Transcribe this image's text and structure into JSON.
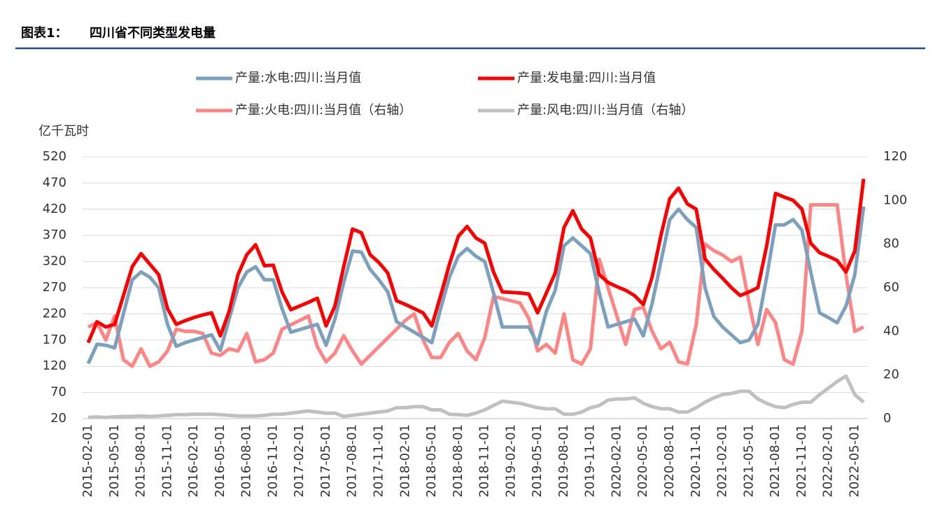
{
  "chart_data": {
    "type": "line",
    "figure_label": "图表1：",
    "title": "四川省不同类型发电量",
    "ylabel": "亿千瓦时",
    "categories": [
      "2015-02-01",
      null,
      null,
      "2015-05-01",
      null,
      null,
      "2015-08-01",
      null,
      null,
      "2015-11-01",
      null,
      null,
      "2016-02-01",
      null,
      null,
      "2016-05-01",
      null,
      null,
      "2016-08-01",
      null,
      null,
      "2016-11-01",
      null,
      null,
      "2017-02-01",
      null,
      null,
      "2017-05-01",
      null,
      null,
      "2017-08-01",
      null,
      null,
      "2017-11-01",
      null,
      null,
      "2018-02-01",
      null,
      null,
      "2018-05-01",
      null,
      null,
      "2018-08-01",
      null,
      null,
      "2018-11-01",
      null,
      null,
      "2019-02-01",
      null,
      null,
      "2019-05-01",
      null,
      null,
      "2019-08-01",
      null,
      null,
      "2019-11-01",
      null,
      null,
      "2020-02-01",
      null,
      null,
      "2020-05-01",
      null,
      null,
      "2020-08-01",
      null,
      null,
      "2020-11-01",
      null,
      null,
      "2021-02-01",
      null,
      null,
      "2021-05-01",
      null,
      null,
      "2021-08-01",
      null,
      null,
      "2021-11-01",
      null,
      null,
      "2022-02-01",
      null,
      null,
      "2022-05-01",
      null
    ],
    "series": [
      {
        "name": "产量:水电:四川:当月值",
        "color": "#7ba1bf",
        "values": [
          125,
          162,
          160,
          155,
          220,
          285,
          300,
          290,
          270,
          200,
          158,
          165,
          170,
          175,
          180,
          150,
          210,
          270,
          300,
          310,
          285,
          285,
          230,
          185,
          190,
          195,
          200,
          160,
          210,
          280,
          340,
          338,
          305,
          285,
          262,
          205,
          195,
          185,
          175,
          165,
          230,
          290,
          330,
          345,
          330,
          320,
          260,
          195,
          195,
          195,
          195,
          162,
          225,
          265,
          350,
          365,
          350,
          335,
          260,
          195,
          200,
          205,
          210,
          178,
          240,
          320,
          400,
          420,
          400,
          385,
          270,
          215,
          195,
          180,
          165,
          170,
          200,
          290,
          390,
          390,
          400,
          380,
          300,
          222,
          213,
          203,
          235,
          295,
          425
        ]
      },
      {
        "name": "产量:发电量:四川:当月值",
        "color": "#ff0000",
        "values": [
          165,
          205,
          195,
          200,
          255,
          310,
          335,
          315,
          295,
          230,
          200,
          207,
          213,
          218,
          222,
          178,
          225,
          295,
          333,
          352,
          312,
          313,
          262,
          228,
          235,
          242,
          250,
          197,
          235,
          310,
          382,
          375,
          333,
          318,
          298,
          245,
          238,
          230,
          222,
          197,
          255,
          315,
          368,
          387,
          365,
          355,
          300,
          262,
          261,
          260,
          258,
          222,
          260,
          298,
          385,
          417,
          382,
          365,
          295,
          280,
          272,
          265,
          255,
          238,
          290,
          370,
          440,
          460,
          430,
          420,
          325,
          305,
          288,
          270,
          255,
          262,
          270,
          350,
          450,
          443,
          437,
          420,
          355,
          337,
          330,
          322,
          300,
          340,
          478
        ]
      },
      {
        "name": "产量:火电:四川:当月值（右轴）",
        "color": "#ff8585",
        "axis": "y2",
        "values": [
          42,
          44,
          36,
          47,
          27,
          24,
          32,
          24,
          26,
          31,
          41,
          40,
          40,
          39,
          30,
          29,
          32,
          31,
          39,
          26,
          27,
          30,
          41,
          43,
          45,
          47,
          33,
          26,
          30,
          38,
          31,
          25,
          29,
          33,
          37,
          41,
          45,
          48,
          36,
          28,
          28,
          35,
          39,
          31,
          27,
          37,
          56,
          55,
          54,
          53,
          46,
          31,
          34,
          30,
          48,
          27,
          25,
          32,
          73,
          60,
          47,
          34,
          50,
          51,
          40,
          32,
          35,
          26,
          25,
          43,
          80,
          77,
          75,
          72,
          74,
          53,
          34,
          50,
          44,
          27,
          25,
          40,
          98,
          98,
          98,
          98,
          66,
          40,
          42
        ]
      },
      {
        "name": "产量:风电:四川:当月值（右轴）",
        "color": "#c0c0c0",
        "axis": "y2",
        "values": [
          0.5,
          0.8,
          0.5,
          0.8,
          1,
          1,
          1.2,
          1,
          1.2,
          1.5,
          1.8,
          1.8,
          2,
          2,
          2,
          1.8,
          1.5,
          1.2,
          1.2,
          1.2,
          1.5,
          2,
          2,
          2.5,
          3,
          3.5,
          3,
          2.5,
          2.5,
          1,
          1.5,
          2,
          2.5,
          3,
          3.5,
          5,
          5,
          5.5,
          5.5,
          4,
          4,
          2,
          1.8,
          1.5,
          2.5,
          4,
          6,
          8,
          7.5,
          7,
          6,
          5,
          4.5,
          4.5,
          2,
          2,
          3,
          5,
          6,
          8.5,
          9,
          9,
          9.5,
          7,
          5.5,
          4.5,
          4.5,
          3,
          3,
          5,
          7.5,
          9.5,
          11,
          11.5,
          12.5,
          12.5,
          9,
          7,
          5.5,
          5,
          6.5,
          7.5,
          7.5,
          11,
          14,
          17,
          19.5,
          11,
          7.5
        ]
      }
    ],
    "ylim": [
      20,
      520
    ],
    "yticks": [
      20,
      70,
      120,
      170,
      220,
      270,
      320,
      370,
      420,
      470,
      520
    ],
    "y2lim": [
      0,
      120
    ],
    "y2ticks": [
      0,
      20,
      40,
      60,
      80,
      100,
      120
    ],
    "grid": true
  }
}
